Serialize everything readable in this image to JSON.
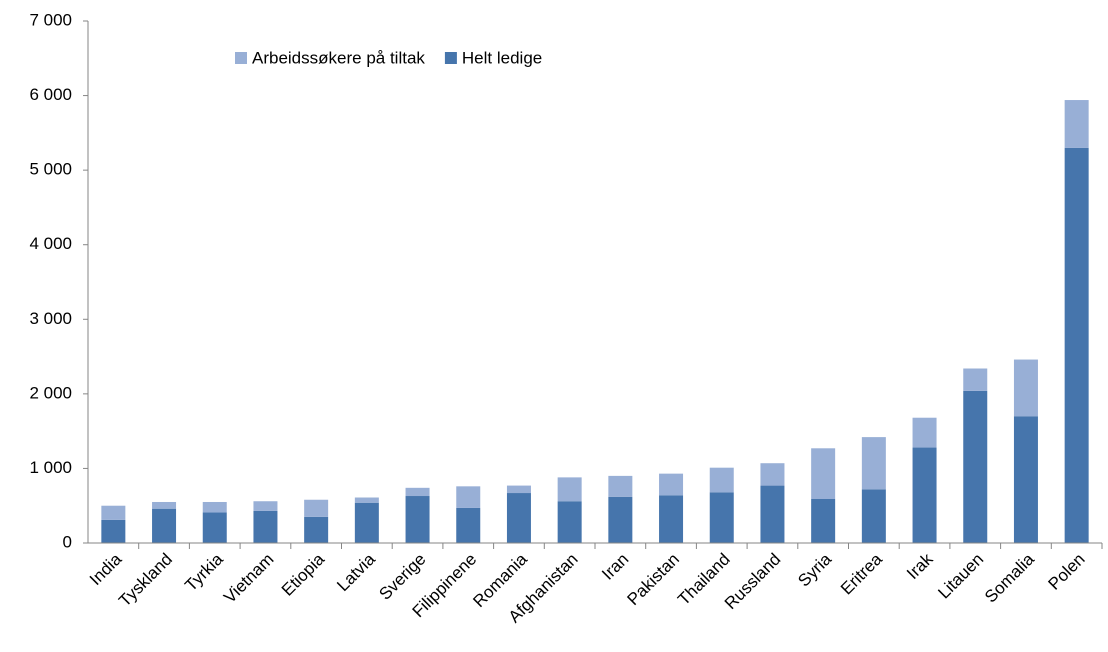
{
  "chart_data": {
    "type": "stacked_bar",
    "categories": [
      "India",
      "Tyskland",
      "Tyrkia",
      "Vietnam",
      "Etiopia",
      "Latvia",
      "Sverige",
      "Filippinene",
      "Romania",
      "Afghanistan",
      "Iran",
      "Pakistan",
      "Thailand",
      "Russland",
      "Syria",
      "Eritrea",
      "Irak",
      "Litauen",
      "Somalia",
      "Polen"
    ],
    "series": [
      {
        "name": "Arbeidssøkere på tiltak",
        "color": "#98afd6",
        "values": [
          190,
          90,
          140,
          130,
          230,
          70,
          110,
          290,
          100,
          320,
          280,
          290,
          330,
          300,
          680,
          700,
          400,
          300,
          760,
          640
        ]
      },
      {
        "name": "Helt ledige",
        "color": "#4675ac",
        "values": [
          310,
          460,
          410,
          430,
          350,
          540,
          630,
          470,
          670,
          560,
          620,
          640,
          680,
          770,
          590,
          720,
          1280,
          2040,
          1700,
          5300
        ]
      }
    ],
    "ylim": [
      0,
      7000
    ],
    "yticks": [
      0,
      {
        "value": 1000,
        "label": "1 000"
      },
      {
        "value": 2000,
        "label": "2 000"
      },
      {
        "value": 3000,
        "label": "3 000"
      },
      {
        "value": 4000,
        "label": "4 000"
      },
      {
        "value": 5000,
        "label": "5 000"
      },
      {
        "value": 6000,
        "label": "6 000"
      },
      {
        "value": 7000,
        "label": "7 000"
      }
    ],
    "grid": false,
    "legend": "top"
  }
}
